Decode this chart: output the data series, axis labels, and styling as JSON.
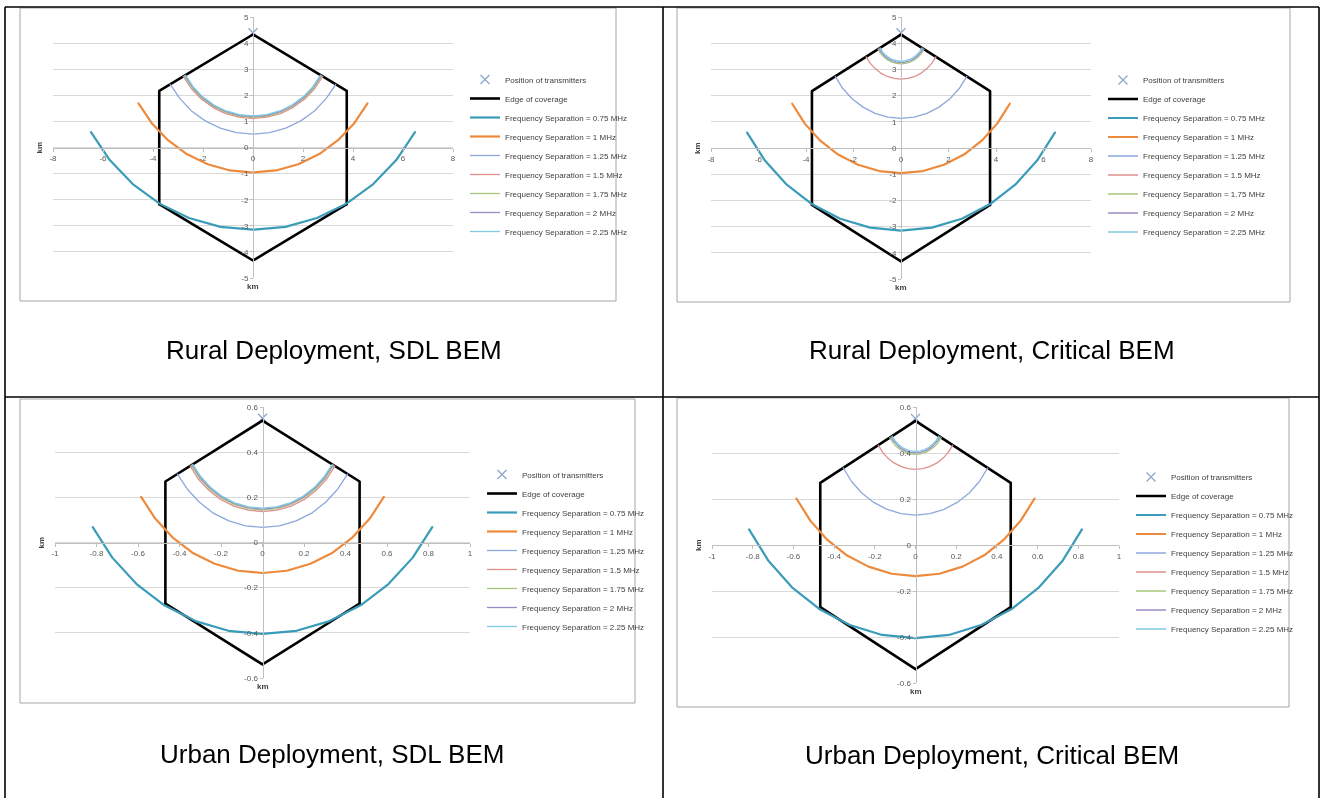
{
  "chart_data": [
    {
      "type": "line",
      "annotations": [
        "Rural Deployment, SDL BEM"
      ],
      "xlabel": "km",
      "ylabel": "km",
      "xlim": [
        -8,
        8
      ],
      "xticks": [
        -8,
        -6,
        -4,
        -2,
        0,
        2,
        4,
        6,
        8
      ],
      "ylim": [
        -5,
        5
      ],
      "yticks": [
        -5,
        -4,
        -3,
        -2,
        -1,
        0,
        1,
        2,
        3,
        4,
        5
      ],
      "grid": "y",
      "legend": "right",
      "marker": "none",
      "series": [
        {
          "name": "Position of transmitters",
          "type": "scatter",
          "marker": "cross",
          "color": "#8fa9cf",
          "x": [
            0
          ],
          "values": [
            4.4
          ]
        },
        {
          "name": "Edge of coverage",
          "color": "#000000",
          "x": [
            -3.75,
            -3.75,
            0,
            3.75,
            3.75
          ],
          "values": [
            -2.17,
            2.17,
            4.33,
            2.17,
            -2.17
          ]
        },
        {
          "color": "#000000",
          "x": [
            -3.75,
            0,
            3.75
          ],
          "values": [
            -2.17,
            -4.33,
            -2.17
          ]
        },
        {
          "name": "Frequency Separation = 0.75 MHz",
          "color": "#3a9cb8",
          "x": [
            -6.48,
            -5.73,
            -4.81,
            -3.74,
            -2.56,
            -1.3,
            0,
            1.3,
            2.56,
            3.74,
            4.81,
            5.73,
            6.48
          ],
          "values": [
            0.59,
            -0.48,
            -1.4,
            -2.15,
            -2.7,
            -3.04,
            -3.15,
            -3.04,
            -2.7,
            -2.15,
            -1.4,
            -0.48,
            0.59
          ]
        },
        {
          "name": "Frequency Separation = 1 MHz",
          "color": "#ee8a3c",
          "x": [
            -4.58,
            -4.05,
            -3.4,
            -2.65,
            -1.81,
            -0.92,
            0,
            0.92,
            1.81,
            2.65,
            3.4,
            4.05,
            4.58
          ],
          "values": [
            1.69,
            0.93,
            0.28,
            -0.25,
            -0.64,
            -0.88,
            -0.96,
            -0.88,
            -0.64,
            -0.25,
            0.28,
            0.93,
            1.69
          ]
        },
        {
          "name": "Frequency Separation = 1.25 MHz",
          "color": "#8ea8dc",
          "x": [
            -3.31,
            -2.93,
            -2.46,
            -1.91,
            -1.31,
            -0.66,
            0,
            0.66,
            1.31,
            1.91,
            2.46,
            2.93,
            3.31
          ],
          "values": [
            2.42,
            1.88,
            1.4,
            1.02,
            0.74,
            0.57,
            0.51,
            0.57,
            0.74,
            1.02,
            1.4,
            1.88,
            2.42
          ]
        },
        {
          "name": "Frequency Separation = 1.5 MHz",
          "color": "#df8f8e",
          "x": [
            -2.79,
            -2.47,
            -2.07,
            -1.61,
            -1.1,
            -0.56,
            0,
            0.56,
            1.1,
            1.61,
            2.07,
            2.47,
            2.79
          ],
          "values": [
            2.72,
            2.26,
            1.86,
            1.54,
            1.3,
            1.16,
            1.11,
            1.16,
            1.3,
            1.54,
            1.86,
            2.26,
            2.72
          ]
        },
        {
          "name": "Frequency Separation = 1.75 MHz",
          "color": "#a6c77a",
          "x": [
            -2.75,
            -2.44,
            -2.04,
            -1.59,
            -1.09,
            -0.55,
            0,
            0.55,
            1.09,
            1.59,
            2.04,
            2.44,
            2.75
          ],
          "values": [
            2.74,
            2.29,
            1.89,
            1.58,
            1.34,
            1.2,
            1.15,
            1.2,
            1.34,
            1.58,
            1.89,
            2.29,
            2.74
          ]
        },
        {
          "name": "Frequency Separation = 2 MHz",
          "color": "#9b8bc4",
          "x": [
            -2.73,
            -2.41,
            -2.03,
            -1.58,
            -1.08,
            -0.55,
            0,
            0.55,
            1.08,
            1.58,
            2.03,
            2.41,
            2.73
          ],
          "values": [
            2.76,
            2.31,
            1.92,
            1.6,
            1.37,
            1.23,
            1.18,
            1.23,
            1.37,
            1.6,
            1.92,
            2.31,
            2.76
          ]
        },
        {
          "name": "Frequency Separation = 2.25 MHz",
          "color": "#7ecae0",
          "x": [
            -2.7,
            -2.39,
            -2.01,
            -1.56,
            -1.07,
            -0.54,
            0,
            0.54,
            1.07,
            1.56,
            2.01,
            2.39,
            2.7
          ],
          "values": [
            2.77,
            2.32,
            1.94,
            1.63,
            1.4,
            1.26,
            1.21,
            1.26,
            1.4,
            1.63,
            1.94,
            2.32,
            2.77
          ]
        }
      ]
    },
    {
      "type": "line",
      "annotations": [
        "Rural Deployment, Critical BEM"
      ],
      "xlabel": "km",
      "ylabel": "km",
      "xlim": [
        -8,
        8
      ],
      "xticks": [
        -8,
        -6,
        -4,
        -2,
        0,
        2,
        4,
        6,
        8
      ],
      "ylim": [
        -5,
        5
      ],
      "yticks": [
        -5,
        -4,
        -3,
        -2,
        -1,
        0,
        1,
        2,
        3,
        4,
        5
      ],
      "grid": "y",
      "legend": "right",
      "marker": "none",
      "series": [
        {
          "name": "Position of transmitters",
          "type": "scatter",
          "marker": "cross",
          "color": "#8fa9cf",
          "x": [
            0
          ],
          "values": [
            4.4
          ]
        },
        {
          "name": "Edge of coverage",
          "color": "#000000",
          "x": [
            -3.75,
            -3.75,
            0,
            3.75,
            3.75
          ],
          "values": [
            -2.17,
            2.17,
            4.33,
            2.17,
            -2.17
          ]
        },
        {
          "color": "#000000",
          "x": [
            -3.75,
            0,
            3.75
          ],
          "values": [
            -2.17,
            -4.33,
            -2.17
          ]
        },
        {
          "name": "Frequency Separation = 0.75 MHz",
          "color": "#3a9cb8",
          "x": [
            -6.48,
            -5.73,
            -4.81,
            -3.74,
            -2.56,
            -1.3,
            0,
            1.3,
            2.56,
            3.74,
            4.81,
            5.73,
            6.48
          ],
          "values": [
            0.59,
            -0.48,
            -1.4,
            -2.15,
            -2.7,
            -3.04,
            -3.15,
            -3.04,
            -2.7,
            -2.15,
            -1.4,
            -0.48,
            0.59
          ]
        },
        {
          "name": "Frequency Separation = 1 MHz",
          "color": "#ee8a3c",
          "x": [
            -4.58,
            -4.05,
            -3.4,
            -2.65,
            -1.81,
            -0.92,
            0,
            0.92,
            1.81,
            2.65,
            3.4,
            4.05,
            4.58
          ],
          "values": [
            1.69,
            0.93,
            0.28,
            -0.25,
            -0.64,
            -0.88,
            -0.96,
            -0.88,
            -0.64,
            -0.25,
            0.28,
            0.93,
            1.69
          ]
        },
        {
          "name": "Frequency Separation = 1.25 MHz",
          "color": "#8ea8dc",
          "x": [
            -2.77,
            -2.45,
            -2.06,
            -1.6,
            -1.09,
            -0.56,
            0,
            0.56,
            1.09,
            1.6,
            2.06,
            2.45,
            2.77
          ],
          "values": [
            2.73,
            2.27,
            1.88,
            1.56,
            1.32,
            1.18,
            1.13,
            1.18,
            1.32,
            1.56,
            1.88,
            2.27,
            2.73
          ]
        },
        {
          "name": "Frequency Separation = 1.5 MHz",
          "color": "#df8f8e",
          "x": [
            -1.47,
            -1.3,
            -1.09,
            -0.85,
            -0.58,
            -0.3,
            0,
            0.3,
            0.58,
            0.85,
            1.09,
            1.3,
            1.47
          ],
          "values": [
            3.48,
            3.24,
            3.03,
            2.86,
            2.73,
            2.66,
            2.63,
            2.66,
            2.73,
            2.86,
            3.03,
            3.24,
            3.48
          ]
        },
        {
          "name": "Frequency Separation = 1.75 MHz",
          "color": "#a6c77a",
          "x": [
            -0.97,
            -0.86,
            -0.72,
            -0.56,
            -0.38,
            -0.19,
            0,
            0.19,
            0.38,
            0.56,
            0.72,
            0.86,
            0.97
          ],
          "values": [
            3.77,
            3.61,
            3.47,
            3.36,
            3.28,
            3.23,
            3.21,
            3.23,
            3.28,
            3.36,
            3.47,
            3.61,
            3.77
          ]
        },
        {
          "name": "Frequency Separation = 2 MHz",
          "color": "#9b8bc4",
          "x": [
            -0.93,
            -0.82,
            -0.69,
            -0.54,
            -0.37,
            -0.19,
            0,
            0.19,
            0.37,
            0.54,
            0.69,
            0.82,
            0.93
          ],
          "values": [
            3.8,
            3.64,
            3.51,
            3.4,
            3.33,
            3.28,
            3.26,
            3.28,
            3.33,
            3.4,
            3.51,
            3.64,
            3.8
          ]
        },
        {
          "name": "Frequency Separation = 2.25 MHz",
          "color": "#7ecae0",
          "x": [
            -0.88,
            -0.78,
            -0.66,
            -0.51,
            -0.35,
            -0.18,
            0,
            0.18,
            0.35,
            0.51,
            0.66,
            0.78,
            0.88
          ],
          "values": [
            3.82,
            3.67,
            3.55,
            3.45,
            3.37,
            3.33,
            3.31,
            3.33,
            3.37,
            3.45,
            3.55,
            3.67,
            3.82
          ]
        }
      ]
    },
    {
      "type": "line",
      "annotations": [
        "Urban Deployment, SDL BEM"
      ],
      "xlabel": "km",
      "ylabel": "km",
      "xlim": [
        -1,
        1
      ],
      "xticks": [
        -1,
        -0.8,
        -0.6,
        -0.4,
        -0.2,
        0,
        0.2,
        0.4,
        0.6,
        0.8,
        1
      ],
      "ylim": [
        -0.6,
        0.6
      ],
      "yticks": [
        -0.6,
        -0.4,
        -0.2,
        0,
        0.2,
        0.4,
        0.6
      ],
      "grid": "y",
      "legend": "right",
      "marker": "none",
      "series": [
        {
          "name": "Position of transmitters",
          "type": "scatter",
          "marker": "cross",
          "color": "#8fa9cf",
          "x": [
            0
          ],
          "values": [
            0.55
          ]
        },
        {
          "name": "Edge of coverage",
          "color": "#000000",
          "x": [
            -0.468,
            -0.468,
            0,
            0.468,
            0.468
          ],
          "values": [
            -0.27,
            0.27,
            0.54,
            0.27,
            -0.27
          ]
        },
        {
          "color": "#000000",
          "x": [
            -0.468,
            0,
            0.468
          ],
          "values": [
            -0.27,
            -0.54,
            -0.27
          ]
        },
        {
          "name": "Frequency Separation = 0.75 MHz",
          "color": "#3a9cb8",
          "x": [
            -0.818,
            -0.724,
            -0.607,
            -0.473,
            -0.323,
            -0.164,
            0,
            0.164,
            0.323,
            0.473,
            0.607,
            0.724,
            0.818
          ],
          "values": [
            0.068,
            -0.067,
            -0.184,
            -0.278,
            -0.348,
            -0.391,
            -0.405,
            -0.391,
            -0.348,
            -0.278,
            -0.184,
            -0.067,
            0.068
          ]
        },
        {
          "name": "Frequency Separation = 1 MHz",
          "color": "#ee8a3c",
          "x": [
            -0.585,
            -0.517,
            -0.434,
            -0.338,
            -0.231,
            -0.117,
            0,
            0.117,
            0.231,
            0.338,
            0.434,
            0.517,
            0.585
          ],
          "values": [
            0.202,
            0.106,
            0.023,
            -0.045,
            -0.094,
            -0.125,
            -0.135,
            -0.125,
            -0.094,
            -0.045,
            0.023,
            0.106,
            0.202
          ]
        },
        {
          "name": "Frequency Separation = 1.25 MHz",
          "color": "#8ea8dc",
          "x": [
            -0.41,
            -0.362,
            -0.304,
            -0.237,
            -0.162,
            -0.082,
            0,
            0.082,
            0.162,
            0.237,
            0.304,
            0.362,
            0.41
          ],
          "values": [
            0.303,
            0.236,
            0.178,
            0.13,
            0.096,
            0.074,
            0.067,
            0.074,
            0.096,
            0.13,
            0.178,
            0.236,
            0.303
          ]
        },
        {
          "name": "Frequency Separation = 1.5 MHz",
          "color": "#df8f8e",
          "x": [
            -0.349,
            -0.309,
            -0.259,
            -0.202,
            -0.138,
            -0.07,
            0,
            0.07,
            0.138,
            0.202,
            0.259,
            0.309,
            0.349
          ],
          "values": [
            0.339,
            0.281,
            0.231,
            0.191,
            0.161,
            0.143,
            0.137,
            0.143,
            0.161,
            0.191,
            0.231,
            0.281,
            0.339
          ]
        },
        {
          "name": "Frequency Separation = 1.75 MHz",
          "color": "#a6c77a",
          "x": [
            -0.343,
            -0.303,
            -0.255,
            -0.198,
            -0.135,
            -0.069,
            0,
            0.069,
            0.135,
            0.198,
            0.255,
            0.303,
            0.343
          ],
          "values": [
            0.342,
            0.285,
            0.237,
            0.197,
            0.168,
            0.15,
            0.144,
            0.15,
            0.168,
            0.197,
            0.237,
            0.285,
            0.342
          ]
        },
        {
          "name": "Frequency Separation = 2 MHz",
          "color": "#9b8bc4",
          "x": [
            -0.339,
            -0.3,
            -0.252,
            -0.196,
            -0.134,
            -0.068,
            0,
            0.068,
            0.134,
            0.196,
            0.252,
            0.3,
            0.339
          ],
          "values": [
            0.344,
            0.288,
            0.24,
            0.201,
            0.172,
            0.154,
            0.148,
            0.154,
            0.172,
            0.201,
            0.24,
            0.288,
            0.344
          ]
        },
        {
          "name": "Frequency Separation = 2.25 MHz",
          "color": "#7ecae0",
          "x": [
            -0.336,
            -0.297,
            -0.249,
            -0.194,
            -0.133,
            -0.067,
            0,
            0.067,
            0.133,
            0.194,
            0.249,
            0.297,
            0.336
          ],
          "values": [
            0.346,
            0.291,
            0.243,
            0.204,
            0.175,
            0.158,
            0.152,
            0.158,
            0.175,
            0.204,
            0.243,
            0.291,
            0.346
          ]
        }
      ]
    },
    {
      "type": "line",
      "annotations": [
        "Urban Deployment, Critical BEM"
      ],
      "xlabel": "km",
      "ylabel": "km",
      "xlim": [
        -1,
        1
      ],
      "xticks": [
        -1,
        -0.8,
        -0.6,
        -0.4,
        -0.2,
        0,
        0.2,
        0.4,
        0.6,
        0.8,
        1
      ],
      "ylim": [
        -0.6,
        0.6
      ],
      "yticks": [
        -0.6,
        -0.4,
        -0.2,
        0,
        0.2,
        0.4,
        0.6
      ],
      "grid": "y",
      "legend": "right",
      "marker": "none",
      "series": [
        {
          "name": "Position of transmitters",
          "type": "scatter",
          "marker": "cross",
          "color": "#8fa9cf",
          "x": [
            0
          ],
          "values": [
            0.55
          ]
        },
        {
          "name": "Edge of coverage",
          "color": "#000000",
          "x": [
            -0.468,
            -0.468,
            0,
            0.468,
            0.468
          ],
          "values": [
            -0.27,
            0.27,
            0.54,
            0.27,
            -0.27
          ]
        },
        {
          "color": "#000000",
          "x": [
            -0.468,
            0,
            0.468
          ],
          "values": [
            -0.27,
            -0.54,
            -0.27
          ]
        },
        {
          "name": "Frequency Separation = 0.75 MHz",
          "color": "#3a9cb8",
          "x": [
            -0.818,
            -0.724,
            -0.607,
            -0.473,
            -0.323,
            -0.164,
            0,
            0.164,
            0.323,
            0.473,
            0.607,
            0.724,
            0.818
          ],
          "values": [
            0.068,
            -0.067,
            -0.184,
            -0.278,
            -0.348,
            -0.391,
            -0.405,
            -0.391,
            -0.348,
            -0.278,
            -0.184,
            -0.067,
            0.068
          ]
        },
        {
          "name": "Frequency Separation = 1 MHz",
          "color": "#ee8a3c",
          "x": [
            -0.585,
            -0.517,
            -0.434,
            -0.338,
            -0.231,
            -0.117,
            0,
            0.117,
            0.231,
            0.338,
            0.434,
            0.517,
            0.585
          ],
          "values": [
            0.202,
            0.106,
            0.023,
            -0.045,
            -0.094,
            -0.125,
            -0.135,
            -0.125,
            -0.094,
            -0.045,
            0.023,
            0.106,
            0.202
          ]
        },
        {
          "name": "Frequency Separation = 1.25 MHz",
          "color": "#8ea8dc",
          "x": [
            -0.355,
            -0.314,
            -0.264,
            -0.205,
            -0.14,
            -0.071,
            0,
            0.071,
            0.14,
            0.205,
            0.264,
            0.314,
            0.355
          ],
          "values": [
            0.335,
            0.276,
            0.226,
            0.185,
            0.155,
            0.136,
            0.13,
            0.136,
            0.155,
            0.185,
            0.226,
            0.276,
            0.335
          ]
        },
        {
          "name": "Frequency Separation = 1.5 MHz",
          "color": "#df8f8e",
          "x": [
            -0.183,
            -0.162,
            -0.136,
            -0.106,
            -0.072,
            -0.037,
            0,
            0.037,
            0.072,
            0.106,
            0.136,
            0.162,
            0.183
          ],
          "values": [
            0.434,
            0.404,
            0.378,
            0.357,
            0.342,
            0.332,
            0.329,
            0.332,
            0.342,
            0.357,
            0.378,
            0.404,
            0.434
          ]
        },
        {
          "name": "Frequency Separation = 1.75 MHz",
          "color": "#a6c77a",
          "x": [
            -0.126,
            -0.112,
            -0.094,
            -0.073,
            -0.05,
            -0.025,
            0,
            0.025,
            0.05,
            0.073,
            0.094,
            0.112,
            0.126
          ],
          "values": [
            0.467,
            0.446,
            0.428,
            0.414,
            0.403,
            0.396,
            0.394,
            0.396,
            0.403,
            0.414,
            0.428,
            0.446,
            0.467
          ]
        },
        {
          "name": "Frequency Separation = 2 MHz",
          "color": "#9b8bc4",
          "x": [
            -0.12,
            -0.106,
            -0.089,
            -0.07,
            -0.048,
            -0.024,
            0,
            0.024,
            0.048,
            0.07,
            0.089,
            0.106,
            0.12
          ],
          "values": [
            0.47,
            0.451,
            0.434,
            0.42,
            0.409,
            0.403,
            0.401,
            0.403,
            0.409,
            0.42,
            0.434,
            0.451,
            0.47
          ]
        },
        {
          "name": "Frequency Separation = 2.25 MHz",
          "color": "#7ecae0",
          "x": [
            -0.115,
            -0.102,
            -0.085,
            -0.067,
            -0.045,
            -0.023,
            0,
            0.023,
            0.045,
            0.067,
            0.085,
            0.102,
            0.115
          ],
          "values": [
            0.473,
            0.455,
            0.438,
            0.425,
            0.415,
            0.409,
            0.407,
            0.409,
            0.415,
            0.425,
            0.438,
            0.455,
            0.473
          ]
        }
      ]
    }
  ]
}
